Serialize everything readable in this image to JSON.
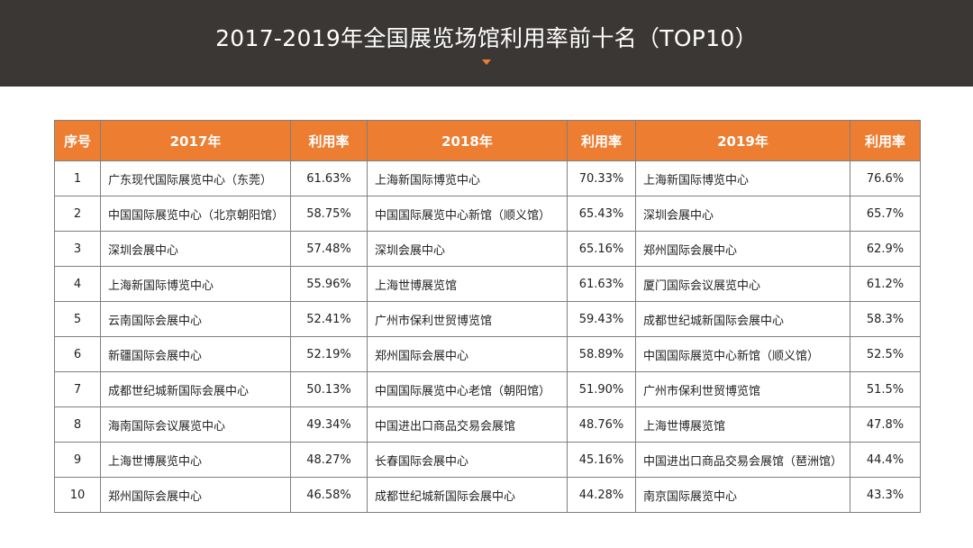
{
  "title": "2017-2019年全国展览场馆利用率前十名（TOP10）",
  "colors": {
    "header_bg": "#3a3735",
    "accent": "#ed7d31"
  },
  "table": {
    "headers": [
      "序号",
      "2017年",
      "利用率",
      "2018年",
      "利用率",
      "2019年",
      "利用率"
    ],
    "rows": [
      [
        "1",
        "广东现代国际展览中心（东莞）",
        "61.63%",
        "上海新国际博览中心",
        "70.33%",
        "上海新国际博览中心",
        "76.6%"
      ],
      [
        "2",
        "中国国际展览中心（北京朝阳馆）",
        "58.75%",
        "中国国际展览中心新馆（顺义馆）",
        "65.43%",
        "深圳会展中心",
        "65.7%"
      ],
      [
        "3",
        "深圳会展中心",
        "57.48%",
        "深圳会展中心",
        "65.16%",
        "郑州国际会展中心",
        "62.9%"
      ],
      [
        "4",
        "上海新国际博览中心",
        "55.96%",
        "上海世博展览馆",
        "61.63%",
        "厦门国际会议展览中心",
        "61.2%"
      ],
      [
        "5",
        "云南国际会展中心",
        "52.41%",
        "广州市保利世贸博览馆",
        "59.43%",
        "成都世纪城新国际会展中心",
        "58.3%"
      ],
      [
        "6",
        "新疆国际会展中心",
        "52.19%",
        "郑州国际会展中心",
        "58.89%",
        "中国国际展览中心新馆（顺义馆）",
        "52.5%"
      ],
      [
        "7",
        "成都世纪城新国际会展中心",
        "50.13%",
        "中国国际展览中心老馆（朝阳馆）",
        "51.90%",
        "广州市保利世贸博览馆",
        "51.5%"
      ],
      [
        "8",
        "海南国际会议展览中心",
        "49.34%",
        "中国进出口商品交易会展馆",
        "48.76%",
        "上海世博展览馆",
        "47.8%"
      ],
      [
        "9",
        "上海世博展览中心",
        "48.27%",
        "长春国际会展中心",
        "45.16%",
        "中国进出口商品交易会展馆（琶洲馆）",
        "44.4%"
      ],
      [
        "10",
        "郑州国际会展中心",
        "46.58%",
        "成都世纪城新国际会展中心",
        "44.28%",
        "南京国际展览中心",
        "43.3%"
      ]
    ]
  }
}
